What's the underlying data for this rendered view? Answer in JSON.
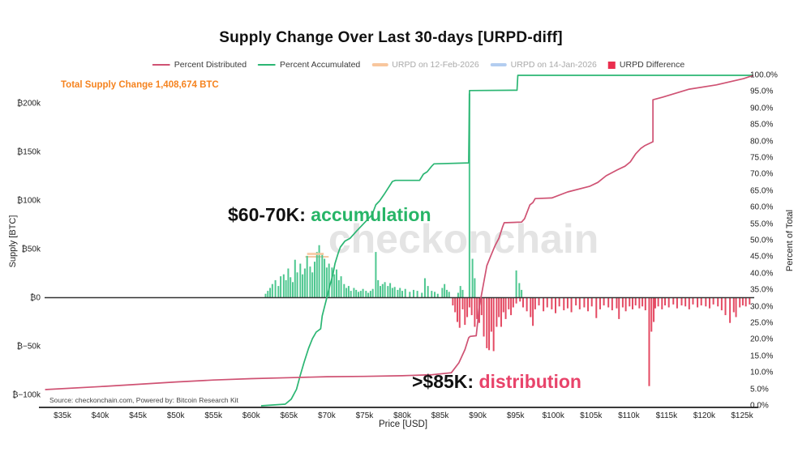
{
  "chart_data": {
    "type": "combo",
    "title": "Supply Change Over Last 30-days [URPD-diff]",
    "x_axis": {
      "title": "Price [USD]",
      "domain_k_usd": [
        32.5,
        126.5
      ],
      "ticks": [
        [
          35,
          "$35k"
        ],
        [
          40,
          "$40k"
        ],
        [
          45,
          "$45k"
        ],
        [
          50,
          "$50k"
        ],
        [
          55,
          "$55k"
        ],
        [
          60,
          "$60k"
        ],
        [
          65,
          "$65k"
        ],
        [
          70,
          "$70k"
        ],
        [
          75,
          "$75k"
        ],
        [
          80,
          "$80k"
        ],
        [
          85,
          "$85k"
        ],
        [
          90,
          "$90k"
        ],
        [
          95,
          "$95k"
        ],
        [
          100,
          "$100k"
        ],
        [
          105,
          "$105k"
        ],
        [
          110,
          "$110k"
        ],
        [
          115,
          "$115k"
        ],
        [
          120,
          "$120k"
        ],
        [
          125,
          "$125k"
        ]
      ]
    },
    "y_left": {
      "title": "Supply [BTC]",
      "domain_k_btc": [
        -120,
        230
      ],
      "ticks": [
        [
          200,
          "₿200k"
        ],
        [
          150,
          "₿150k"
        ],
        [
          100,
          "₿100k"
        ],
        [
          50,
          "₿50k"
        ],
        [
          0,
          "₿0"
        ],
        [
          -50,
          "₿−50k"
        ],
        [
          -100,
          "₿−100k"
        ]
      ]
    },
    "y_right": {
      "title": "Percent of Total",
      "domain_pct": [
        0,
        100
      ],
      "ticks": [
        [
          100,
          "100.0%"
        ],
        [
          95,
          "95.0%"
        ],
        [
          90,
          "90.0%"
        ],
        [
          85,
          "85.0%"
        ],
        [
          80,
          "80.0%"
        ],
        [
          75,
          "75.0%"
        ],
        [
          70,
          "70.0%"
        ],
        [
          65,
          "65.0%"
        ],
        [
          60,
          "60.0%"
        ],
        [
          55,
          "55.0%"
        ],
        [
          50,
          "50.0%"
        ],
        [
          45,
          "45.0%"
        ],
        [
          40,
          "40.0%"
        ],
        [
          35,
          "35.0%"
        ],
        [
          30,
          "30.0%"
        ],
        [
          25,
          "25.0%"
        ],
        [
          20,
          "20.0%"
        ],
        [
          15,
          "15.0%"
        ],
        [
          10,
          "10.0%"
        ],
        [
          5,
          "5.0%"
        ],
        [
          0,
          "0.0%"
        ]
      ]
    },
    "legend": {
      "items": [
        {
          "label": "Percent Distributed",
          "swatch": "line",
          "color": "#cf5273",
          "active": true
        },
        {
          "label": "Percent Accumulated",
          "swatch": "line",
          "color": "#2bb673",
          "active": true
        },
        {
          "label": "URPD on 12-Feb-2026",
          "swatch": "band",
          "color": "#f8c69d",
          "active": false
        },
        {
          "label": "URPD on 14-Jan-2026",
          "swatch": "band",
          "color": "#b3cdf0",
          "active": false
        },
        {
          "label": "URPD Difference",
          "swatch": "square",
          "color": "#ea2e4e",
          "active": true
        }
      ]
    },
    "series": {
      "distributed": {
        "name": "Percent Distributed",
        "units": [
          "price_k_usd",
          "percent_of_total"
        ],
        "points": [
          [
            32.7,
            4.9
          ],
          [
            40,
            5.8
          ],
          [
            45,
            6.5
          ],
          [
            50,
            7.2
          ],
          [
            55,
            7.8
          ],
          [
            60,
            8.2
          ],
          [
            65,
            8.5
          ],
          [
            70,
            8.8
          ],
          [
            75,
            8.9
          ],
          [
            80,
            9.1
          ],
          [
            84,
            9.4
          ],
          [
            86.5,
            10.0
          ],
          [
            87.5,
            13.0
          ],
          [
            88.3,
            17.0
          ],
          [
            88.8,
            20.6
          ],
          [
            89.0,
            21.0
          ],
          [
            89.8,
            21.2
          ],
          [
            90.2,
            30.0
          ],
          [
            91.2,
            42.4
          ],
          [
            91.7,
            45.2
          ],
          [
            92.3,
            48.5
          ],
          [
            92.8,
            50.7
          ],
          [
            93.3,
            54.2
          ],
          [
            93.5,
            55.4
          ],
          [
            95.8,
            55.6
          ],
          [
            96.2,
            56.6
          ],
          [
            96.9,
            60.8
          ],
          [
            97.3,
            61.5
          ],
          [
            97.6,
            62.7
          ],
          [
            99.8,
            62.9
          ],
          [
            101.9,
            64.7
          ],
          [
            104.8,
            66.4
          ],
          [
            105.9,
            67.6
          ],
          [
            107.0,
            69.6
          ],
          [
            108.4,
            71.3
          ],
          [
            109.5,
            72.5
          ],
          [
            110.2,
            73.8
          ],
          [
            110.9,
            76.2
          ],
          [
            111.6,
            77.9
          ],
          [
            112.1,
            78.7
          ],
          [
            113.2,
            79.9
          ],
          [
            113.2,
            92.6
          ],
          [
            114.5,
            93.4
          ],
          [
            118.0,
            95.8
          ],
          [
            121.6,
            97.1
          ],
          [
            125.2,
            99.0
          ],
          [
            126.5,
            100
          ]
        ]
      },
      "accumulated": {
        "name": "Percent Accumulated",
        "units": [
          "price_k_usd",
          "percent_of_total"
        ],
        "points": [
          [
            61.3,
            0
          ],
          [
            64.5,
            0.5
          ],
          [
            65.3,
            2
          ],
          [
            66.0,
            5
          ],
          [
            66.5,
            9.3
          ],
          [
            67.0,
            13.2
          ],
          [
            67.6,
            17.4
          ],
          [
            68.1,
            20.3
          ],
          [
            68.6,
            22.3
          ],
          [
            69.2,
            23.3
          ],
          [
            69.4,
            27.2
          ],
          [
            70.0,
            32.6
          ],
          [
            70.4,
            36.3
          ],
          [
            70.8,
            39.5
          ],
          [
            71.1,
            43.1
          ],
          [
            71.5,
            46.1
          ],
          [
            71.8,
            48.0
          ],
          [
            72.4,
            49.8
          ],
          [
            73.1,
            50.7
          ],
          [
            74.0,
            53.0
          ],
          [
            76.0,
            57.8
          ],
          [
            76.5,
            60.8
          ],
          [
            77.0,
            62.0
          ],
          [
            77.6,
            64.0
          ],
          [
            78.7,
            67.9
          ],
          [
            79.1,
            68.2
          ],
          [
            82.3,
            68.2
          ],
          [
            82.8,
            70.1
          ],
          [
            83.3,
            70.8
          ],
          [
            83.9,
            72.5
          ],
          [
            84.2,
            73.2
          ],
          [
            88.8,
            73.5
          ],
          [
            88.9,
            95.4
          ],
          [
            95.2,
            95.5
          ],
          [
            95.3,
            100
          ],
          [
            126.5,
            100
          ]
        ]
      }
    },
    "bars": {
      "name": "URPD Difference",
      "units": [
        "price_k_usd",
        "supply_change_k_btc"
      ],
      "accumulation": [
        [
          61.9,
          4
        ],
        [
          62.2,
          7
        ],
        [
          62.5,
          10
        ],
        [
          62.8,
          14
        ],
        [
          63.2,
          18
        ],
        [
          63.6,
          12
        ],
        [
          63.9,
          22
        ],
        [
          64.3,
          24
        ],
        [
          64.6,
          18
        ],
        [
          64.9,
          30
        ],
        [
          65.2,
          21
        ],
        [
          65.5,
          16
        ],
        [
          65.8,
          39
        ],
        [
          66.1,
          26
        ],
        [
          66.5,
          35
        ],
        [
          66.8,
          24
        ],
        [
          67.1,
          30
        ],
        [
          67.4,
          43
        ],
        [
          67.8,
          32
        ],
        [
          68.1,
          26
        ],
        [
          68.4,
          37
        ],
        [
          68.7,
          47
        ],
        [
          69.0,
          54
        ],
        [
          69.4,
          45
        ],
        [
          69.7,
          40
        ],
        [
          70.0,
          31
        ],
        [
          70.3,
          35
        ],
        [
          70.7,
          31
        ],
        [
          71.0,
          24
        ],
        [
          71.3,
          29
        ],
        [
          71.6,
          18
        ],
        [
          71.9,
          22
        ],
        [
          72.3,
          14
        ],
        [
          72.6,
          10
        ],
        [
          72.9,
          12
        ],
        [
          73.2,
          7
        ],
        [
          73.6,
          10
        ],
        [
          73.9,
          8
        ],
        [
          74.2,
          6
        ],
        [
          74.5,
          7
        ],
        [
          74.8,
          9
        ],
        [
          75.2,
          7
        ],
        [
          75.5,
          5
        ],
        [
          75.8,
          7
        ],
        [
          76.1,
          9
        ],
        [
          76.5,
          47
        ],
        [
          76.8,
          18
        ],
        [
          77.1,
          12
        ],
        [
          77.4,
          14
        ],
        [
          77.7,
          16
        ],
        [
          78.1,
          12
        ],
        [
          78.4,
          15
        ],
        [
          78.7,
          10
        ],
        [
          79.0,
          11
        ],
        [
          79.4,
          8
        ],
        [
          79.7,
          10
        ],
        [
          80.0,
          7
        ],
        [
          80.4,
          9
        ],
        [
          81.0,
          6
        ],
        [
          81.5,
          8
        ],
        [
          82.0,
          7
        ],
        [
          82.6,
          5
        ],
        [
          83.0,
          20
        ],
        [
          83.4,
          12
        ],
        [
          83.9,
          7
        ],
        [
          84.3,
          6
        ],
        [
          84.7,
          4
        ],
        [
          85.3,
          10
        ],
        [
          85.6,
          14
        ],
        [
          85.9,
          8
        ],
        [
          86.2,
          6
        ],
        [
          87.4,
          5
        ],
        [
          87.7,
          12
        ],
        [
          88.0,
          8
        ],
        [
          88.9,
          210
        ],
        [
          89.3,
          40
        ],
        [
          89.6,
          20
        ],
        [
          95.1,
          28
        ],
        [
          95.5,
          15
        ],
        [
          95.8,
          8
        ]
      ],
      "distribution": [
        [
          86.7,
          -8
        ],
        [
          87.0,
          -15
        ],
        [
          87.3,
          -25
        ],
        [
          87.6,
          -31
        ],
        [
          88.0,
          -12
        ],
        [
          88.3,
          -28
        ],
        [
          88.6,
          -20
        ],
        [
          88.9,
          -10
        ],
        [
          89.2,
          -18
        ],
        [
          89.6,
          -30
        ],
        [
          89.9,
          -22
        ],
        [
          90.2,
          -26
        ],
        [
          90.5,
          -18
        ],
        [
          90.8,
          -40
        ],
        [
          91.2,
          -52
        ],
        [
          91.5,
          -54
        ],
        [
          91.8,
          -35
        ],
        [
          92.1,
          -55
        ],
        [
          92.5,
          -30
        ],
        [
          92.8,
          -20
        ],
        [
          93.1,
          -30
        ],
        [
          93.4,
          -15
        ],
        [
          93.7,
          -22
        ],
        [
          94.1,
          -12
        ],
        [
          94.4,
          -18
        ],
        [
          94.7,
          -10
        ],
        [
          95.1,
          -6
        ],
        [
          95.6,
          -4
        ],
        [
          96.0,
          -10
        ],
        [
          96.5,
          -14
        ],
        [
          97.0,
          -20
        ],
        [
          97.3,
          -29
        ],
        [
          97.6,
          -12
        ],
        [
          98.1,
          -8
        ],
        [
          98.7,
          -14
        ],
        [
          99.2,
          -10
        ],
        [
          99.8,
          -12
        ],
        [
          100.3,
          -16
        ],
        [
          100.8,
          -9
        ],
        [
          101.4,
          -13
        ],
        [
          101.9,
          -11
        ],
        [
          102.4,
          -15
        ],
        [
          103.0,
          -8
        ],
        [
          103.5,
          -12
        ],
        [
          104.1,
          -10
        ],
        [
          104.6,
          -14
        ],
        [
          105.1,
          -9
        ],
        [
          105.7,
          -21
        ],
        [
          106.2,
          -12
        ],
        [
          106.7,
          -8
        ],
        [
          107.3,
          -10
        ],
        [
          107.8,
          -13
        ],
        [
          108.4,
          -11
        ],
        [
          108.7,
          -22
        ],
        [
          109.2,
          -10
        ],
        [
          109.6,
          -14
        ],
        [
          110.1,
          -9
        ],
        [
          110.5,
          -12
        ],
        [
          110.9,
          -8
        ],
        [
          111.4,
          -11
        ],
        [
          111.8,
          -9
        ],
        [
          112.2,
          -13
        ],
        [
          112.7,
          -91
        ],
        [
          113.0,
          -35
        ],
        [
          113.3,
          -25
        ],
        [
          113.5,
          -11
        ],
        [
          113.9,
          -9
        ],
        [
          114.4,
          -12
        ],
        [
          114.8,
          -8
        ],
        [
          115.3,
          -10
        ],
        [
          115.9,
          -7
        ],
        [
          116.4,
          -11
        ],
        [
          117.0,
          -8
        ],
        [
          117.5,
          -9
        ],
        [
          118.0,
          -12
        ],
        [
          118.5,
          -7
        ],
        [
          119.1,
          -10
        ],
        [
          119.6,
          -8
        ],
        [
          120.2,
          -9
        ],
        [
          120.7,
          -11
        ],
        [
          121.2,
          -7
        ],
        [
          121.8,
          -9
        ],
        [
          122.3,
          -13
        ],
        [
          122.8,
          -18
        ],
        [
          123.4,
          -26
        ],
        [
          123.9,
          -15
        ],
        [
          124.2,
          -20
        ],
        [
          124.7,
          -10
        ],
        [
          125.1,
          -8
        ],
        [
          125.5,
          -9
        ],
        [
          126.0,
          -7
        ]
      ]
    },
    "urpd_hint": {
      "price_from": 67.4,
      "price_to": 69.6,
      "supply_kbtc": 45
    },
    "annotations": {
      "total_supply": "Total Supply Change 1,408,674 BTC",
      "accumulation": {
        "prefix": "$60-70K:",
        "highlight": "accumulation"
      },
      "distribution": {
        "prefix": ">$85K:",
        "highlight": "distribution"
      }
    },
    "watermark": {
      "prefix": "_",
      "text": "checkonchain"
    },
    "source": "Source: checkonchain.com, Powered by: Bitcoin Research Kit",
    "grid": false,
    "legend_position": "top-center",
    "colors": {
      "accum_line": "#2bb673",
      "accum_bar": "#4ec790",
      "dist_line": "#cf5273",
      "dist_bar": "#e44a63",
      "legend_diff_square": "#ea2e4e",
      "urpd_feb_band": "#f8c69d",
      "urpd_jan_band": "#b3cdf0",
      "accent_orange": "#f5831f",
      "annotation_green": "#27b567",
      "annotation_pink": "#e8436a",
      "watermark_gray": "#e4e4e4",
      "watermark_underscore": "#f3c69e",
      "inactive_legend_text": "#a9a9a9",
      "zero_line": "#333333",
      "axis_spine": "#3a3a3a"
    }
  }
}
